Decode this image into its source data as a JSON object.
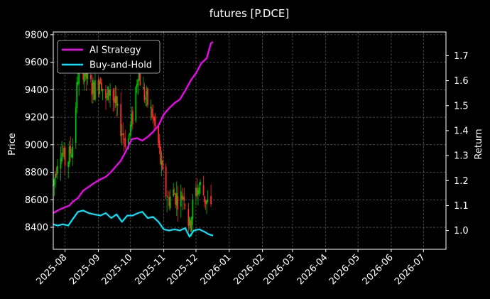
{
  "chart_data": {
    "type": "line",
    "title": "futures [P.DCE]",
    "ylabel_left": "Price",
    "ylabel_right": "Return",
    "xlabel": "",
    "grid": true,
    "legend_placement": "top-left",
    "background": "#000000",
    "x_ticks": [
      "2025-08",
      "2025-09",
      "2025-10",
      "2025-11",
      "2025-12",
      "2026-01",
      "2026-02",
      "2026-03",
      "2026-04",
      "2026-05",
      "2026-06",
      "2026-07"
    ],
    "xlim": [
      "2025-07-21",
      "2026-07-22"
    ],
    "left_axis": {
      "ylim": [
        8240,
        9820
      ],
      "ticks": [
        8400,
        8600,
        8800,
        9000,
        9200,
        9400,
        9600,
        9800
      ]
    },
    "right_axis": {
      "ylim": [
        0.925,
        1.795
      ],
      "ticks": [
        1.0,
        1.1,
        1.2,
        1.3,
        1.4,
        1.5,
        1.6,
        1.7
      ]
    },
    "series": [
      {
        "name": "AI Strategy",
        "axis": "right",
        "color": "#ff00ff",
        "points": [
          [
            "2025-07-21",
            1.07
          ],
          [
            "2025-07-25",
            1.08
          ],
          [
            "2025-07-30",
            1.09
          ],
          [
            "2025-08-05",
            1.1
          ],
          [
            "2025-08-08",
            1.115
          ],
          [
            "2025-08-13",
            1.13
          ],
          [
            "2025-08-18",
            1.16
          ],
          [
            "2025-08-23",
            1.175
          ],
          [
            "2025-08-28",
            1.19
          ],
          [
            "2025-09-03",
            1.205
          ],
          [
            "2025-09-08",
            1.215
          ],
          [
            "2025-09-13",
            1.235
          ],
          [
            "2025-09-18",
            1.26
          ],
          [
            "2025-09-22",
            1.28
          ],
          [
            "2025-09-27",
            1.32
          ],
          [
            "2025-10-02",
            1.365
          ],
          [
            "2025-10-07",
            1.37
          ],
          [
            "2025-10-12",
            1.36
          ],
          [
            "2025-10-17",
            1.375
          ],
          [
            "2025-10-22",
            1.395
          ],
          [
            "2025-10-27",
            1.42
          ],
          [
            "2025-11-01",
            1.465
          ],
          [
            "2025-11-06",
            1.49
          ],
          [
            "2025-11-11",
            1.51
          ],
          [
            "2025-11-16",
            1.525
          ],
          [
            "2025-11-21",
            1.56
          ],
          [
            "2025-11-26",
            1.6
          ],
          [
            "2025-12-01",
            1.63
          ],
          [
            "2025-12-06",
            1.67
          ],
          [
            "2025-12-11",
            1.69
          ],
          [
            "2025-12-15",
            1.75
          ],
          [
            "2025-12-17",
            1.755
          ]
        ]
      },
      {
        "name": "Buy-and-Hold",
        "axis": "right",
        "color": "#00e5ff",
        "points": [
          [
            "2025-07-21",
            1.025
          ],
          [
            "2025-07-25",
            1.02
          ],
          [
            "2025-07-30",
            1.025
          ],
          [
            "2025-08-04",
            1.02
          ],
          [
            "2025-08-08",
            1.045
          ],
          [
            "2025-08-13",
            1.075
          ],
          [
            "2025-08-18",
            1.08
          ],
          [
            "2025-08-23",
            1.07
          ],
          [
            "2025-08-28",
            1.065
          ],
          [
            "2025-09-03",
            1.06
          ],
          [
            "2025-09-08",
            1.07
          ],
          [
            "2025-09-13",
            1.05
          ],
          [
            "2025-09-18",
            1.065
          ],
          [
            "2025-09-23",
            1.035
          ],
          [
            "2025-09-28",
            1.06
          ],
          [
            "2025-10-03",
            1.06
          ],
          [
            "2025-10-08",
            1.07
          ],
          [
            "2025-10-12",
            1.075
          ],
          [
            "2025-10-17",
            1.05
          ],
          [
            "2025-10-22",
            1.055
          ],
          [
            "2025-10-27",
            1.035
          ],
          [
            "2025-11-01",
            1.005
          ],
          [
            "2025-11-06",
            1.0
          ],
          [
            "2025-11-11",
            1.005
          ],
          [
            "2025-11-16",
            1.0
          ],
          [
            "2025-11-21",
            1.01
          ],
          [
            "2025-11-25",
            0.975
          ],
          [
            "2025-11-29",
            1.0
          ],
          [
            "2025-12-04",
            1.005
          ],
          [
            "2025-12-09",
            0.995
          ],
          [
            "2025-12-13",
            0.985
          ],
          [
            "2025-12-17",
            0.98
          ]
        ]
      },
      {
        "name": "",
        "type": "candlestick",
        "axis": "left",
        "up_color": "#00c000",
        "down_color": "#ff2a2a",
        "anchors": [
          [
            "2025-07-21",
            8700
          ],
          [
            "2025-07-27",
            9000
          ],
          [
            "2025-08-02",
            8850
          ],
          [
            "2025-08-08",
            9000
          ],
          [
            "2025-08-13",
            9500
          ],
          [
            "2025-08-18",
            9550
          ],
          [
            "2025-08-23",
            9450
          ],
          [
            "2025-08-28",
            9400
          ],
          [
            "2025-09-03",
            9500
          ],
          [
            "2025-09-08",
            9300
          ],
          [
            "2025-09-12",
            9420
          ],
          [
            "2025-09-18",
            9250
          ],
          [
            "2025-09-23",
            9100
          ],
          [
            "2025-09-28",
            9000
          ],
          [
            "2025-10-03",
            9200
          ],
          [
            "2025-10-08",
            9550
          ],
          [
            "2025-10-12",
            9400
          ],
          [
            "2025-10-17",
            9300
          ],
          [
            "2025-10-22",
            9200
          ],
          [
            "2025-10-27",
            9000
          ],
          [
            "2025-11-01",
            8700
          ],
          [
            "2025-11-05",
            8600
          ],
          [
            "2025-11-10",
            8650
          ],
          [
            "2025-11-15",
            8600
          ],
          [
            "2025-11-20",
            8650
          ],
          [
            "2025-11-25",
            8400
          ],
          [
            "2025-11-30",
            8650
          ],
          [
            "2025-12-05",
            8700
          ],
          [
            "2025-12-10",
            8600
          ],
          [
            "2025-12-15",
            8520
          ]
        ]
      }
    ]
  }
}
